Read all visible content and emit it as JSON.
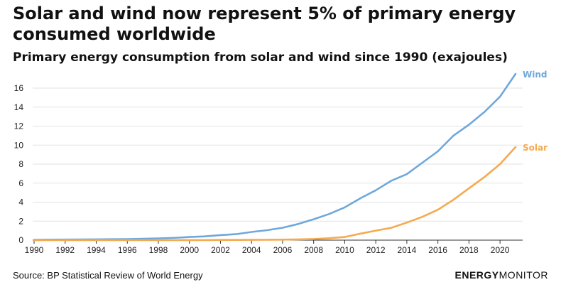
{
  "title": "Solar and wind now represent 5% of primary energy consumed worldwide",
  "subtitle": "Primary energy consumption from solar and wind since 1990 (exajoules)",
  "source": "Source: BP Statistical Review of World Energy",
  "brand": {
    "part1": "ENERGY",
    "part2": "MONITOR"
  },
  "colors": {
    "wind": "#6fa8dc",
    "solar": "#f6a94f",
    "axis": "#333333",
    "grid": "#e2e2e2"
  },
  "chart_data": {
    "type": "line",
    "title": "Solar and wind now represent 5% of primary energy consumed worldwide",
    "subtitle": "Primary energy consumption from solar and wind since 1990 (exajoules)",
    "xlabel": "",
    "ylabel": "",
    "xlim": [
      1990,
      2021
    ],
    "ylim": [
      0,
      17.5
    ],
    "xticks": [
      1990,
      1992,
      1994,
      1996,
      1998,
      2000,
      2002,
      2004,
      2006,
      2008,
      2010,
      2012,
      2014,
      2016,
      2018,
      2020
    ],
    "yticks": [
      0,
      2,
      4,
      6,
      8,
      10,
      12,
      14,
      16
    ],
    "grid": "horizontal",
    "legend": "end-of-line labels",
    "x": [
      1990,
      1991,
      1992,
      1993,
      1994,
      1995,
      1996,
      1997,
      1998,
      1999,
      2000,
      2001,
      2002,
      2003,
      2004,
      2005,
      2006,
      2007,
      2008,
      2009,
      2010,
      2011,
      2012,
      2013,
      2014,
      2015,
      2016,
      2017,
      2018,
      2019,
      2020,
      2021
    ],
    "series": [
      {
        "name": "Wind",
        "values": [
          0.04,
          0.05,
          0.06,
          0.07,
          0.08,
          0.1,
          0.11,
          0.14,
          0.19,
          0.24,
          0.33,
          0.4,
          0.53,
          0.63,
          0.86,
          1.05,
          1.3,
          1.7,
          2.2,
          2.75,
          3.45,
          4.4,
          5.25,
          6.25,
          6.95,
          8.15,
          9.35,
          11.0,
          12.15,
          13.5,
          15.1,
          17.5
        ]
      },
      {
        "name": "Solar",
        "values": [
          0,
          0,
          0,
          0,
          0,
          0,
          0,
          0,
          0,
          0,
          0.01,
          0.01,
          0.02,
          0.02,
          0.03,
          0.04,
          0.05,
          0.08,
          0.12,
          0.2,
          0.33,
          0.68,
          1.0,
          1.3,
          1.85,
          2.45,
          3.2,
          4.25,
          5.45,
          6.65,
          8.0,
          9.8
        ]
      }
    ]
  }
}
